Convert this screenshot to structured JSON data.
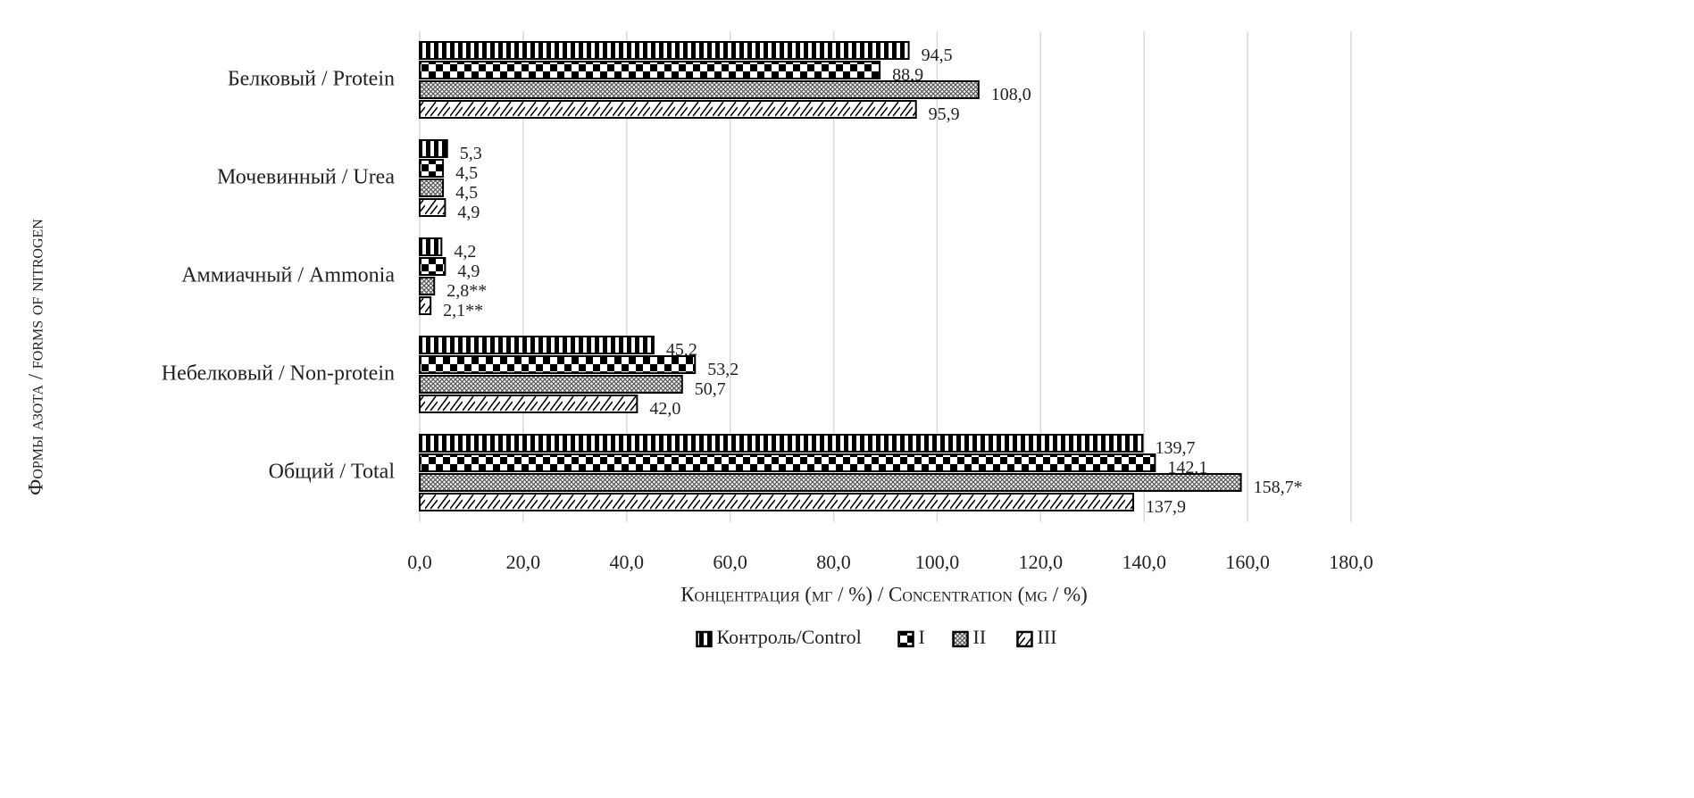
{
  "chart_data": {
    "type": "hbar",
    "x_label": "Концентрация (мг / %) / Concentration (mg / %)",
    "y_label": "Формы азота / forms of nitrogen",
    "categories": [
      "Белковый / Protein",
      "Мочевинный / Urea",
      "Аммиачный / Ammonia",
      "Небелковый / Non-protein",
      "Общий / Total"
    ],
    "series": [
      {
        "name": "Контроль/Control",
        "color": "#000000",
        "pattern": "vertical-stripes",
        "values": [
          94.5,
          5.3,
          4.2,
          45.2,
          139.7
        ],
        "value_labels": [
          "94,5",
          "5,3",
          "4,2",
          "45,2",
          "139,7"
        ]
      },
      {
        "name": "I",
        "color": "#000000",
        "pattern": "checker",
        "values": [
          88.9,
          4.5,
          4.9,
          53.2,
          142.1
        ],
        "value_labels": [
          "88,9",
          "4,5",
          "4,9",
          "53,2",
          "142,1"
        ]
      },
      {
        "name": "II",
        "color": "#555555",
        "pattern": "crosshatch",
        "values": [
          108.0,
          4.5,
          2.8,
          50.7,
          158.7
        ],
        "value_labels": [
          "108,0",
          "4,5",
          "2,8**",
          "50,7",
          "158,7*"
        ]
      },
      {
        "name": "III",
        "color": "#000000",
        "pattern": "zigzag",
        "values": [
          95.9,
          4.9,
          2.1,
          42.0,
          137.9
        ],
        "value_labels": [
          "95,9",
          "4,9",
          "2,1**",
          "42,0",
          "137,9"
        ]
      }
    ],
    "xlim": [
      0,
      180
    ],
    "xticks": [
      {
        "value": 0,
        "label": "0,0"
      },
      {
        "value": 20,
        "label": "20,0"
      },
      {
        "value": 40,
        "label": "40,0"
      },
      {
        "value": 60,
        "label": "60,0"
      },
      {
        "value": 80,
        "label": "80,0"
      },
      {
        "value": 100,
        "label": "100,0"
      },
      {
        "value": 120,
        "label": "120,0"
      },
      {
        "value": 140,
        "label": "140,0"
      },
      {
        "value": 160,
        "label": "160,0"
      },
      {
        "value": 180,
        "label": "180,0"
      }
    ],
    "grid": true,
    "legend": "bottom"
  }
}
